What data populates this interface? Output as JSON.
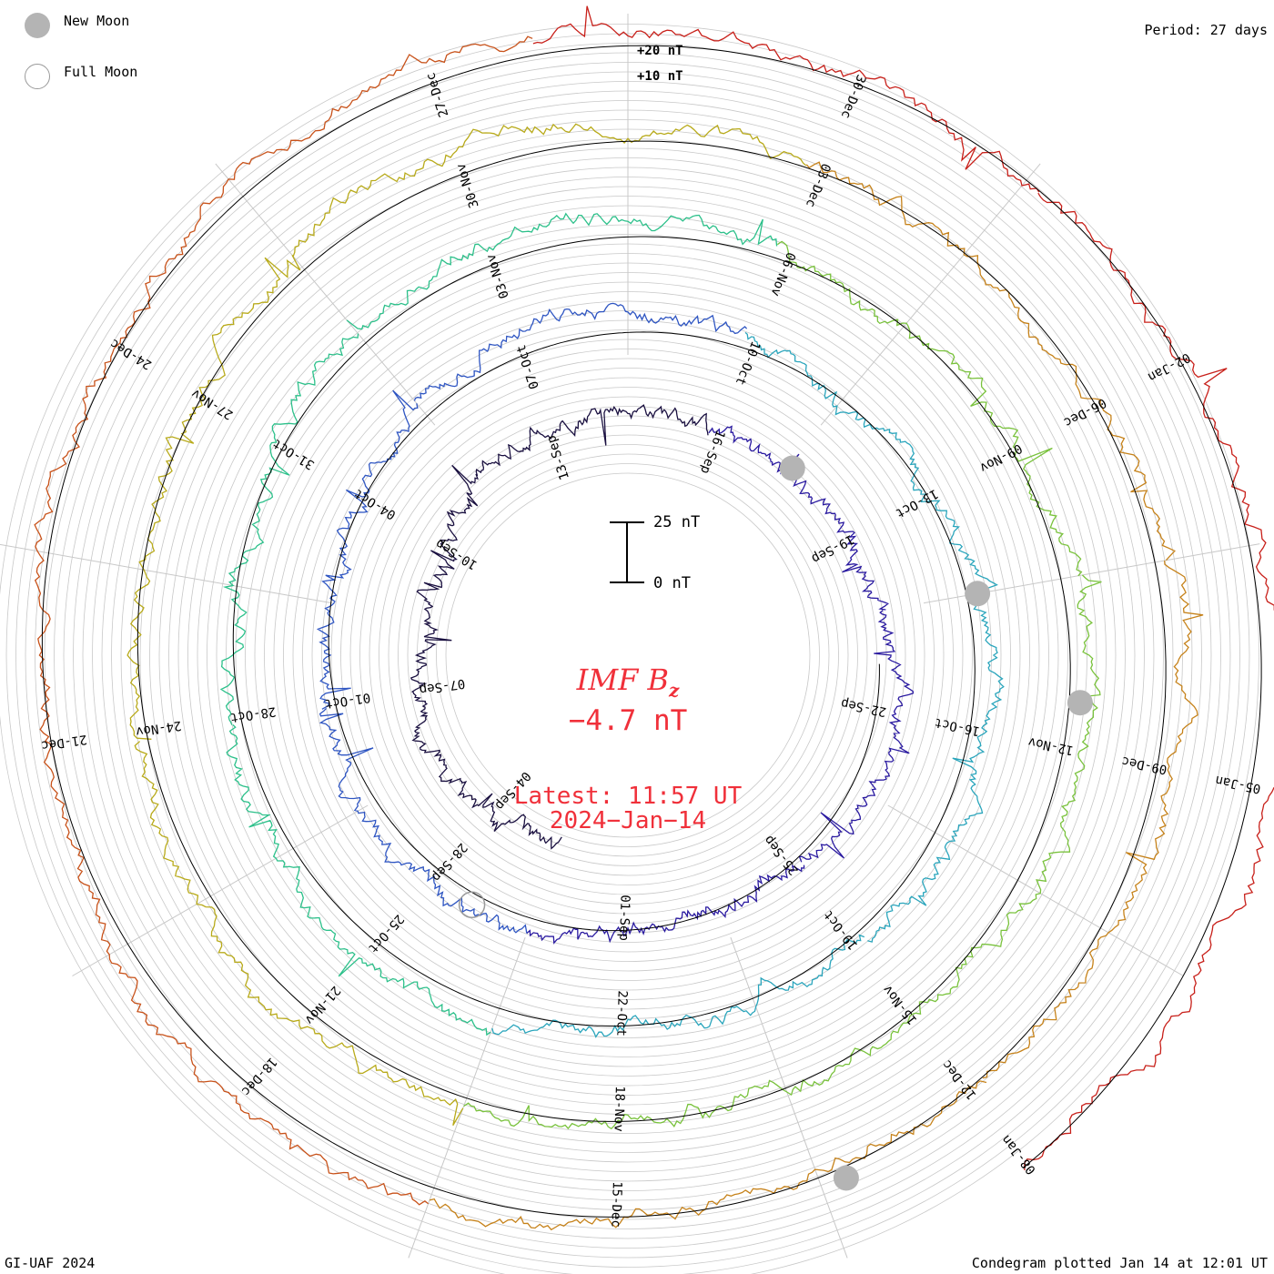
{
  "legend": {
    "new_moon": "New Moon",
    "full_moon": "Full Moon"
  },
  "period": "Period: 27 days",
  "ring_labels": {
    "plus20": "+20 nT",
    "plus10": "+10 nT"
  },
  "scale": {
    "top": "25 nT",
    "bottom": "0 nT"
  },
  "center": {
    "title_main": "IMF B",
    "title_sub": "z",
    "value": "−4.7 nT",
    "latest": "Latest: 11:57 UT",
    "date": "2024−Jan−14"
  },
  "footer": {
    "credit": "GI-UAF 2024",
    "plotted": "Condegram plotted Jan 14 at 12:01 UT"
  },
  "colors": {
    "text_red": "#f0303a",
    "grid": "#c8c8c8",
    "moon_fill": "#b4b4b4",
    "turn_colors": [
      "#1a1040",
      "#2a1aa0",
      "#2e55c2",
      "#2aa5bc",
      "#2cc08a",
      "#79c23c",
      "#b8aa1a",
      "#c6821a",
      "#c8521a",
      "#c8201a"
    ]
  },
  "chart_data": {
    "type": "condegram-spiral",
    "period_days": 27,
    "turns": [
      {
        "index": 0,
        "date_labels": [
          "04-Sep",
          "07-Sep",
          "10-Sep",
          "13-Sep",
          "16-Sep",
          "19-Sep",
          "22-Sep",
          "25-Sep",
          "01-Sep"
        ]
      },
      {
        "index": 1,
        "date_labels": [
          "28-Sep",
          "01-Oct",
          "04-Oct",
          "07-Oct",
          "10-Oct",
          "13-Oct",
          "16-Oct",
          "19-Oct",
          "22-Oct"
        ]
      },
      {
        "index": 2,
        "date_labels": [
          "25-Oct",
          "28-Oct",
          "31-Oct",
          "03-Nov",
          "06-Nov",
          "09-Nov",
          "12-Nov",
          "15-Nov",
          "18-Nov"
        ]
      },
      {
        "index": 3,
        "date_labels": [
          "21-Nov",
          "24-Nov",
          "27-Nov",
          "30-Nov",
          "03-Dec",
          "06-Dec",
          "09-Dec",
          "12-Dec",
          "15-Dec"
        ]
      },
      {
        "index": 4,
        "date_labels": [
          "18-Dec",
          "21-Dec",
          "24-Dec",
          "27-Dec",
          "30-Dec",
          "02-Jan",
          "05-Jan",
          "08-Jan"
        ]
      }
    ],
    "moon_events": [
      {
        "type": "new",
        "turn": 0,
        "day": 15.1
      },
      {
        "type": "new",
        "turn": 1,
        "day": 18.0
      },
      {
        "type": "new",
        "turn": 2,
        "day": 19.2
      },
      {
        "type": "new",
        "turn": 3,
        "day": 23.8
      },
      {
        "type": "new",
        "turn": 4,
        "day": 25.5
      },
      {
        "type": "full",
        "turn": 1,
        "day": 0.9
      }
    ],
    "latest_value_nT": -4.7,
    "y_scale_nT": [
      0,
      25
    ],
    "grid": true
  }
}
